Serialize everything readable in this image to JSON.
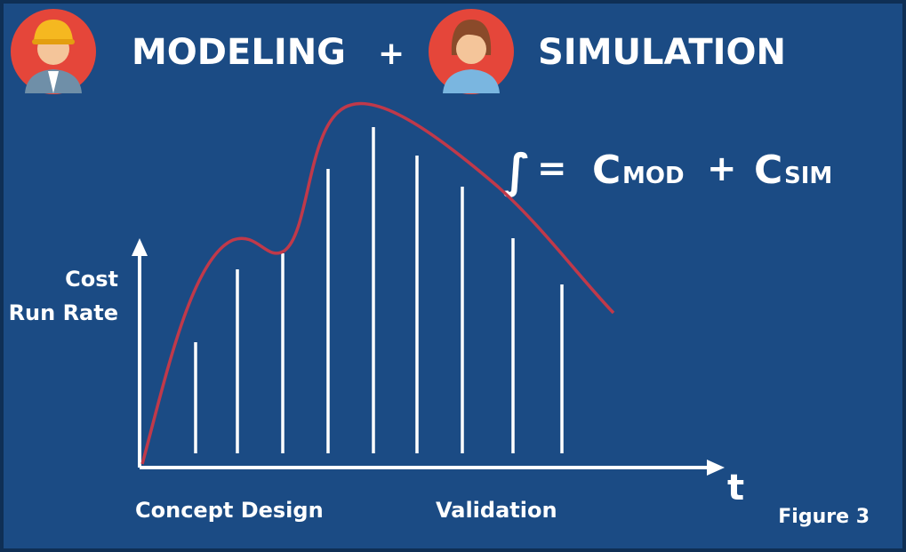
{
  "header": {
    "left_label": "MODELING",
    "joiner": "+",
    "right_label": "SIMULATION"
  },
  "formula": {
    "integral": "∫",
    "equals": "=",
    "term1": "C",
    "sub1": "MOD",
    "plus": "+",
    "term2": "C",
    "sub2": "SIM"
  },
  "axis": {
    "y_label_line1": "Cost",
    "y_label_line2": "Run Rate",
    "x_label": "t"
  },
  "phases": [
    "Concept Design",
    "Validation"
  ],
  "caption": "Figure 3"
}
